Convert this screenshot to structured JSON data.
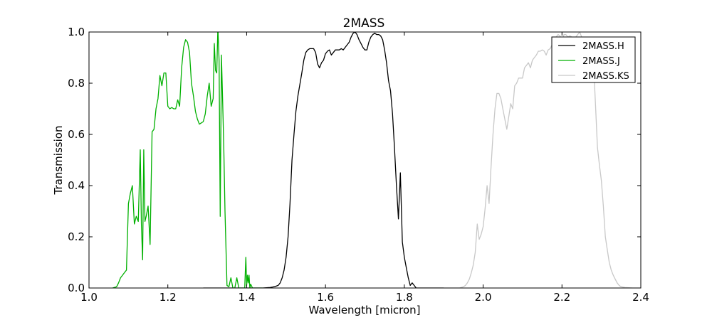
{
  "chart_data": {
    "type": "line",
    "title": "2MASS",
    "xlabel": "Wavelength [micron]",
    "ylabel": "Transmission",
    "xlim": [
      1.0,
      2.4
    ],
    "ylim": [
      0.0,
      1.0
    ],
    "xticks": [
      "1.0",
      "1.2",
      "1.4",
      "1.6",
      "1.8",
      "2.0",
      "2.2",
      "2.4"
    ],
    "yticks": [
      "0.0",
      "0.2",
      "0.4",
      "0.6",
      "0.8",
      "1.0"
    ],
    "grid": false,
    "legend_position": "top-right",
    "series": [
      {
        "name": "2MASS.H",
        "color": "#000000",
        "x": [
          1.29,
          1.44,
          1.46,
          1.47,
          1.48,
          1.485,
          1.49,
          1.495,
          1.5,
          1.505,
          1.51,
          1.515,
          1.52,
          1.525,
          1.53,
          1.54,
          1.545,
          1.55,
          1.555,
          1.56,
          1.57,
          1.575,
          1.58,
          1.585,
          1.59,
          1.595,
          1.6,
          1.605,
          1.61,
          1.615,
          1.62,
          1.625,
          1.63,
          1.635,
          1.64,
          1.645,
          1.65,
          1.655,
          1.66,
          1.665,
          1.67,
          1.675,
          1.68,
          1.685,
          1.69,
          1.695,
          1.7,
          1.705,
          1.71,
          1.715,
          1.72,
          1.725,
          1.73,
          1.735,
          1.74,
          1.745,
          1.75,
          1.755,
          1.76,
          1.765,
          1.77,
          1.775,
          1.78,
          1.785,
          1.79,
          1.795,
          1.8,
          1.805,
          1.81,
          1.815,
          1.82,
          1.825,
          1.83,
          1.84,
          1.86,
          1.9
        ],
        "y": [
          0.0,
          0.0,
          0.002,
          0.005,
          0.01,
          0.02,
          0.04,
          0.07,
          0.12,
          0.2,
          0.33,
          0.5,
          0.6,
          0.69,
          0.75,
          0.84,
          0.89,
          0.92,
          0.93,
          0.935,
          0.935,
          0.92,
          0.875,
          0.86,
          0.88,
          0.89,
          0.915,
          0.925,
          0.93,
          0.91,
          0.92,
          0.93,
          0.93,
          0.93,
          0.935,
          0.93,
          0.94,
          0.95,
          0.96,
          0.98,
          0.995,
          1.0,
          0.99,
          0.97,
          0.955,
          0.94,
          0.93,
          0.93,
          0.96,
          0.98,
          0.99,
          0.995,
          0.99,
          0.99,
          0.985,
          0.97,
          0.93,
          0.88,
          0.81,
          0.77,
          0.68,
          0.55,
          0.4,
          0.27,
          0.45,
          0.18,
          0.12,
          0.08,
          0.04,
          0.01,
          0.02,
          0.01,
          0.0,
          0.0,
          0.0,
          0.0
        ]
      },
      {
        "name": "2MASS.J",
        "color": "#00b000",
        "x": [
          1.06,
          1.07,
          1.075,
          1.08,
          1.085,
          1.09,
          1.095,
          1.1,
          1.105,
          1.11,
          1.115,
          1.12,
          1.125,
          1.13,
          1.133,
          1.136,
          1.139,
          1.142,
          1.145,
          1.15,
          1.155,
          1.16,
          1.165,
          1.17,
          1.175,
          1.18,
          1.185,
          1.19,
          1.195,
          1.2,
          1.205,
          1.21,
          1.215,
          1.22,
          1.225,
          1.23,
          1.235,
          1.24,
          1.245,
          1.25,
          1.255,
          1.26,
          1.265,
          1.27,
          1.275,
          1.28,
          1.285,
          1.29,
          1.295,
          1.3,
          1.305,
          1.31,
          1.315,
          1.318,
          1.321,
          1.324,
          1.327,
          1.33,
          1.333,
          1.336,
          1.339,
          1.342,
          1.345,
          1.35,
          1.355,
          1.36,
          1.365,
          1.37,
          1.375,
          1.38,
          1.385,
          1.39,
          1.395,
          1.398,
          1.4,
          1.402,
          1.404,
          1.406,
          1.408,
          1.41,
          1.415,
          1.42,
          1.43,
          1.44
        ],
        "y": [
          0.0,
          0.005,
          0.02,
          0.04,
          0.05,
          0.06,
          0.07,
          0.33,
          0.37,
          0.4,
          0.25,
          0.28,
          0.26,
          0.54,
          0.25,
          0.11,
          0.54,
          0.26,
          0.28,
          0.32,
          0.17,
          0.61,
          0.62,
          0.7,
          0.74,
          0.83,
          0.79,
          0.84,
          0.84,
          0.71,
          0.7,
          0.705,
          0.7,
          0.7,
          0.735,
          0.71,
          0.86,
          0.94,
          0.97,
          0.96,
          0.92,
          0.8,
          0.75,
          0.69,
          0.66,
          0.64,
          0.645,
          0.65,
          0.68,
          0.75,
          0.8,
          0.71,
          0.74,
          0.955,
          0.85,
          0.84,
          1.02,
          0.89,
          0.28,
          0.91,
          0.73,
          0.55,
          0.3,
          0.01,
          0.005,
          0.04,
          0.0,
          0.0,
          0.04,
          0.0,
          0.0,
          0.0,
          0.0,
          0.12,
          0.01,
          0.05,
          0.02,
          0.05,
          0.0,
          0.015,
          0.0,
          0.0,
          0.0,
          0.0
        ]
      },
      {
        "name": "2MASS.KS",
        "color": "#c8c8c8",
        "x": [
          1.9,
          1.94,
          1.95,
          1.955,
          1.96,
          1.965,
          1.97,
          1.975,
          1.98,
          1.985,
          1.99,
          1.995,
          2.0,
          2.005,
          2.01,
          2.015,
          2.02,
          2.025,
          2.03,
          2.035,
          2.04,
          2.045,
          2.05,
          2.055,
          2.06,
          2.065,
          2.07,
          2.075,
          2.08,
          2.085,
          2.09,
          2.095,
          2.1,
          2.105,
          2.11,
          2.115,
          2.12,
          2.125,
          2.13,
          2.135,
          2.14,
          2.145,
          2.15,
          2.155,
          2.16,
          2.165,
          2.17,
          2.175,
          2.18,
          2.185,
          2.19,
          2.195,
          2.2,
          2.205,
          2.21,
          2.215,
          2.22,
          2.225,
          2.23,
          2.235,
          2.24,
          2.245,
          2.25,
          2.255,
          2.26,
          2.265,
          2.27,
          2.275,
          2.28,
          2.285,
          2.29,
          2.295,
          2.3,
          2.305,
          2.31,
          2.315,
          2.32,
          2.325,
          2.33,
          2.335,
          2.34,
          2.345,
          2.35,
          2.36,
          2.38,
          2.4
        ],
        "y": [
          0.0,
          0.0,
          0.005,
          0.01,
          0.02,
          0.035,
          0.06,
          0.09,
          0.14,
          0.25,
          0.19,
          0.21,
          0.24,
          0.31,
          0.4,
          0.33,
          0.47,
          0.6,
          0.7,
          0.76,
          0.76,
          0.74,
          0.7,
          0.66,
          0.62,
          0.67,
          0.72,
          0.7,
          0.79,
          0.8,
          0.82,
          0.82,
          0.82,
          0.86,
          0.87,
          0.88,
          0.86,
          0.89,
          0.9,
          0.91,
          0.925,
          0.925,
          0.93,
          0.925,
          0.91,
          0.93,
          0.935,
          0.95,
          0.97,
          0.98,
          0.99,
          0.985,
          0.96,
          0.99,
          0.99,
          0.98,
          0.985,
          0.98,
          0.96,
          0.98,
          0.99,
          1.0,
          0.98,
          0.97,
          0.96,
          0.96,
          0.95,
          0.92,
          0.88,
          0.72,
          0.55,
          0.48,
          0.42,
          0.32,
          0.2,
          0.15,
          0.1,
          0.07,
          0.05,
          0.035,
          0.02,
          0.01,
          0.005,
          0.002,
          0.0,
          0.0
        ]
      }
    ]
  }
}
